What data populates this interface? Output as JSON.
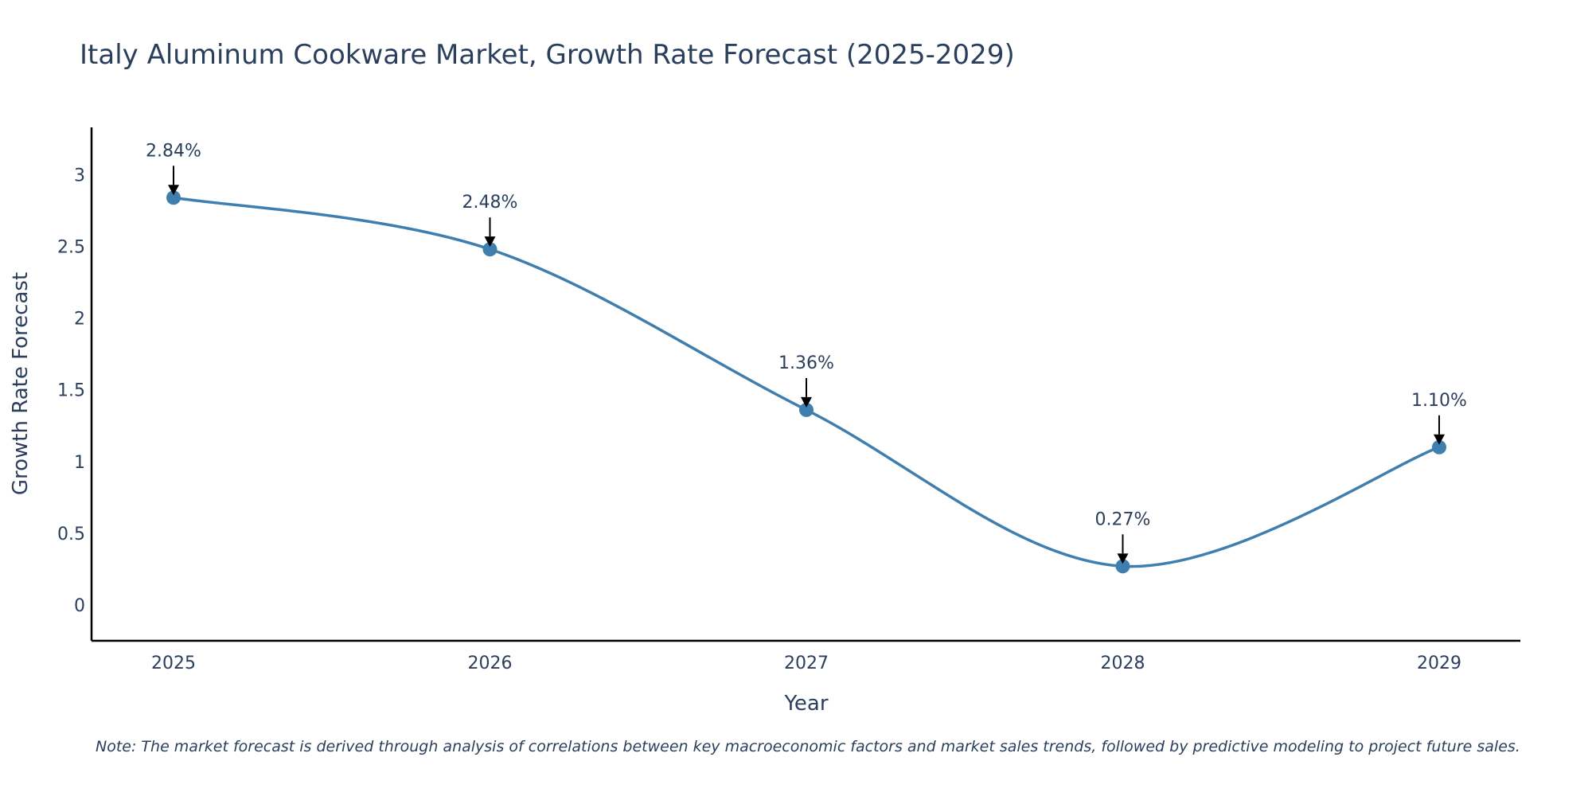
{
  "chart_data": {
    "type": "line",
    "title": "Italy Aluminum Cookware Market, Growth Rate Forecast (2025-2029)",
    "xlabel": "Year",
    "ylabel": "Growth Rate Forecast",
    "categories": [
      "2025",
      "2026",
      "2027",
      "2028",
      "2029"
    ],
    "series": [
      {
        "name": "Growth Rate Forecast",
        "values": [
          2.84,
          2.48,
          1.36,
          0.27,
          1.1
        ],
        "labels": [
          "2.84%",
          "2.48%",
          "1.36%",
          "0.27%",
          "1.10%"
        ],
        "color": "#3f7faf"
      }
    ],
    "ylim": [
      -0.25,
      3.33
    ],
    "yticks": [
      0,
      0.5,
      1,
      1.5,
      2,
      2.5,
      3
    ],
    "ytick_labels": [
      "0",
      "0.5",
      "1",
      "1.5",
      "2",
      "2.5",
      "3"
    ],
    "grid": false,
    "note": "Note: The market forecast is derived through analysis of correlations between key macroeconomic factors and market sales trends, followed by predictive modeling to project future sales."
  }
}
